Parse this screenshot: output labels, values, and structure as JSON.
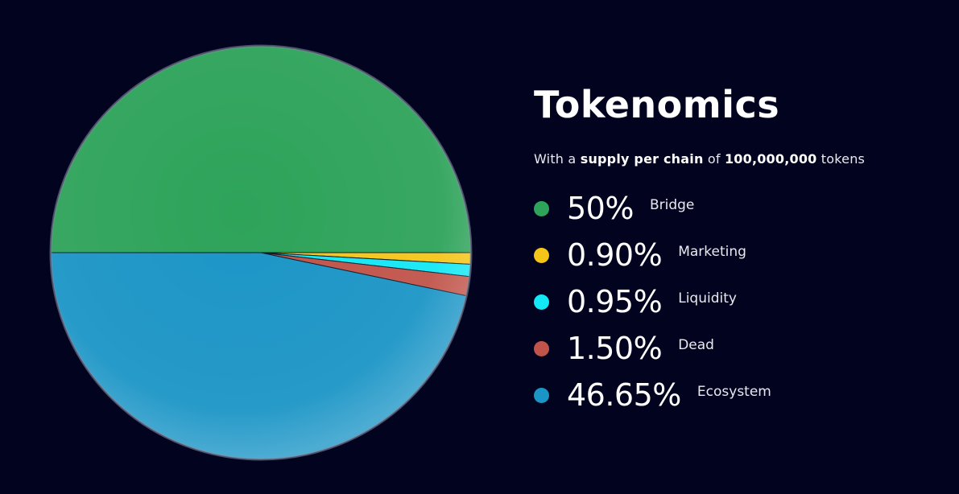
{
  "header": {
    "title": "Tokenomics",
    "subtitle_prefix": "With a ",
    "subtitle_bold_1": "supply per chain",
    "subtitle_mid": " of ",
    "subtitle_bold_2": "100,000,000",
    "subtitle_suffix": " tokens"
  },
  "colors": {
    "background": "#02031f"
  },
  "chart_data": {
    "type": "pie",
    "title": "",
    "categories": [
      "Bridge",
      "Marketing",
      "Liquidity",
      "Dead",
      "Ecosystem"
    ],
    "values": [
      50,
      0.9,
      0.95,
      1.5,
      46.65
    ],
    "value_labels": [
      "50%",
      "0.90%",
      "0.95%",
      "1.50%",
      "46.65%"
    ],
    "colors": [
      "#2ea35a",
      "#f5c518",
      "#13e8f5",
      "#c0544a",
      "#1b95c6"
    ],
    "legend_position": "right"
  }
}
